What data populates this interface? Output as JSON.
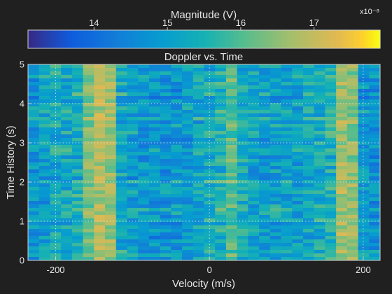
{
  "chart_data": {
    "type": "heatmap",
    "title": "Doppler vs. Time",
    "xlabel": "Velocity (m/s)",
    "ylabel": "Time History (s)",
    "xlim": [
      -236,
      222
    ],
    "ylim": [
      0,
      5
    ],
    "x_ticks": [
      -200,
      0,
      200
    ],
    "x_tick_labels": [
      "-200",
      "0",
      "200"
    ],
    "y_ticks": [
      0,
      1,
      2,
      3,
      4,
      5
    ],
    "y_tick_labels": [
      "0",
      "1",
      "2",
      "3",
      "4",
      "5"
    ],
    "grid": true,
    "colorbar": {
      "label": "Magnitude (V)",
      "range": [
        13.1,
        17.9
      ],
      "ticks": [
        14,
        15,
        16,
        17
      ],
      "tick_labels": [
        "14",
        "15",
        "16",
        "17"
      ],
      "exponent_label": "x10⁻⁸",
      "colormap": "parula",
      "placement": "top"
    },
    "n_velocity_bins": 32,
    "n_time_bins": 56,
    "velocity_bin_mean_magnitude": [
      14.9,
      15.0,
      15.3,
      15.2,
      15.4,
      16.4,
      16.8,
      16.6,
      15.3,
      15.0,
      14.9,
      14.8,
      14.8,
      14.9,
      15.0,
      15.2,
      15.3,
      15.5,
      16.1,
      15.4,
      15.1,
      15.0,
      15.1,
      15.0,
      15.0,
      15.2,
      15.3,
      15.5,
      16.7,
      16.5,
      14.9,
      14.8
    ]
  },
  "colors": {
    "background": "#202020",
    "text": "#e6e6e6",
    "grid": "#dcdcdc"
  }
}
